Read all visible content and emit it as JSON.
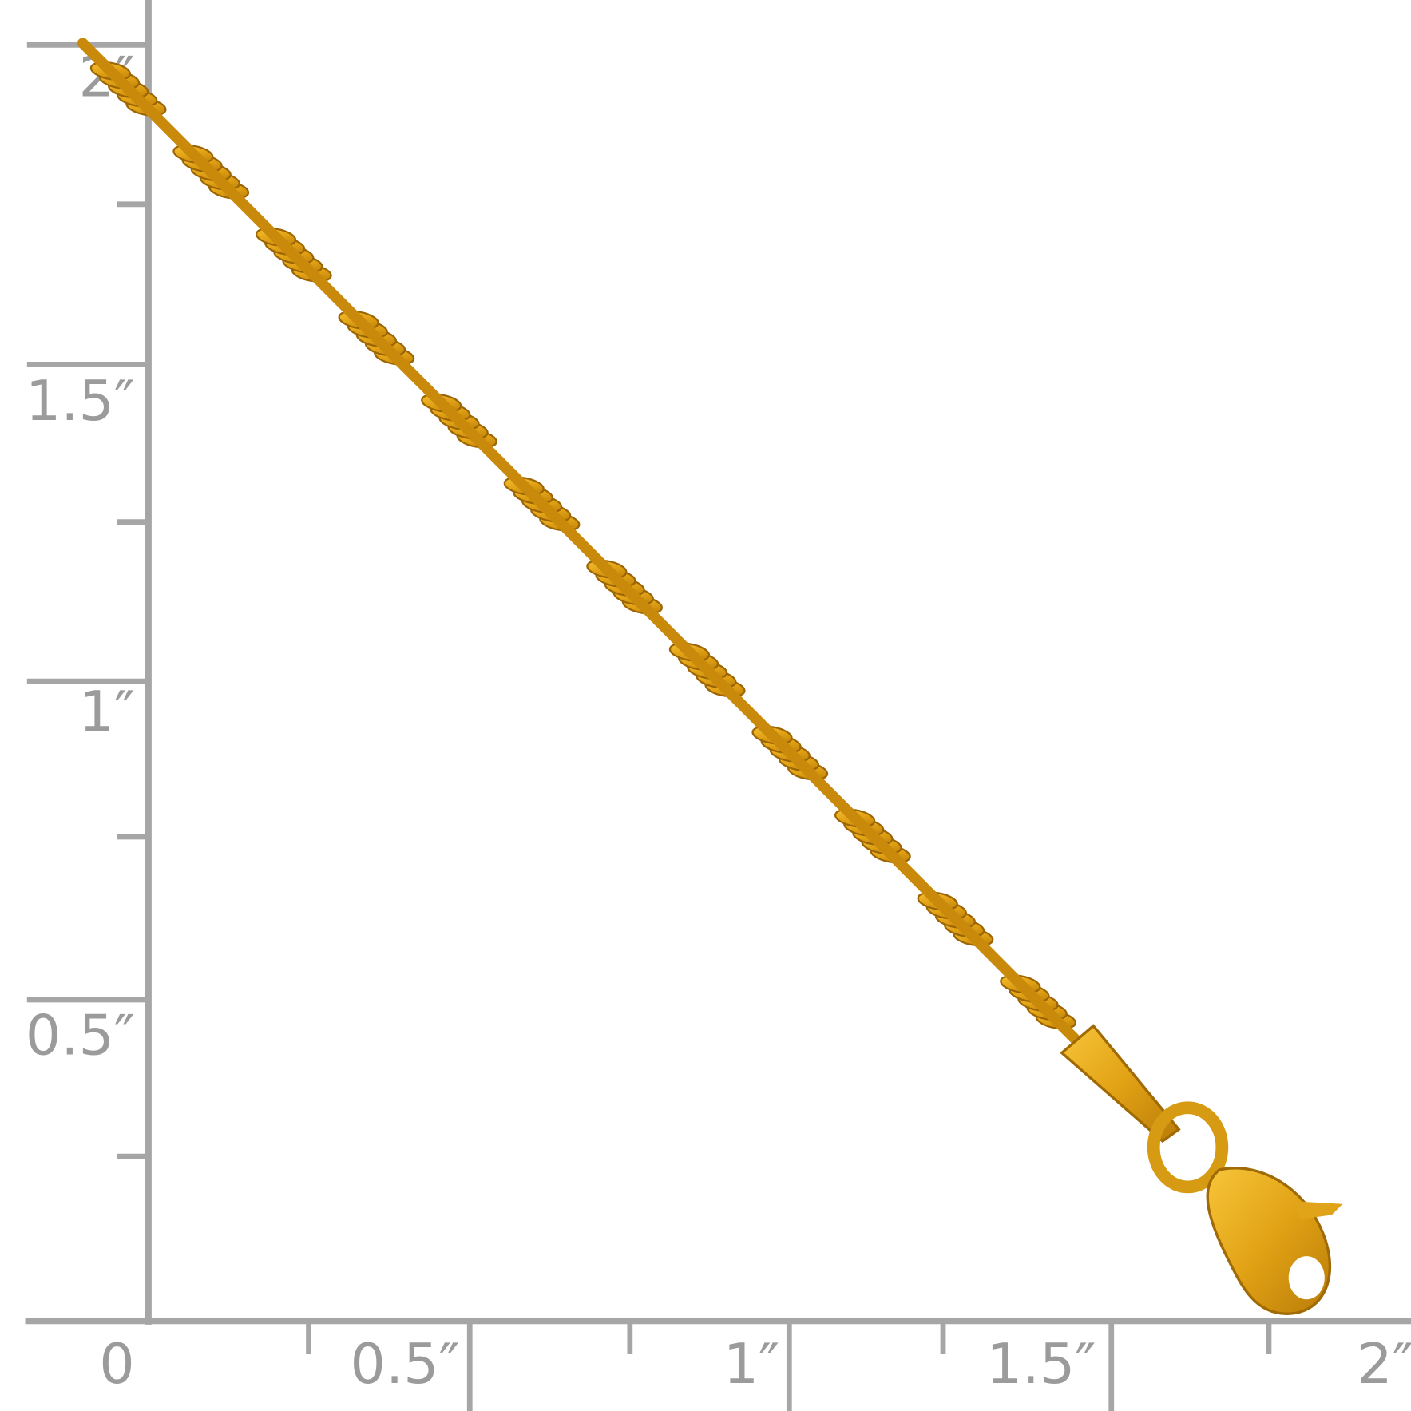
{
  "ruler": {
    "x_labels": [
      "0",
      "0.5″",
      "1″",
      "1.5″",
      "2″"
    ],
    "y_labels": [
      "2″",
      "1.5″",
      "1″",
      "0.5″"
    ]
  }
}
